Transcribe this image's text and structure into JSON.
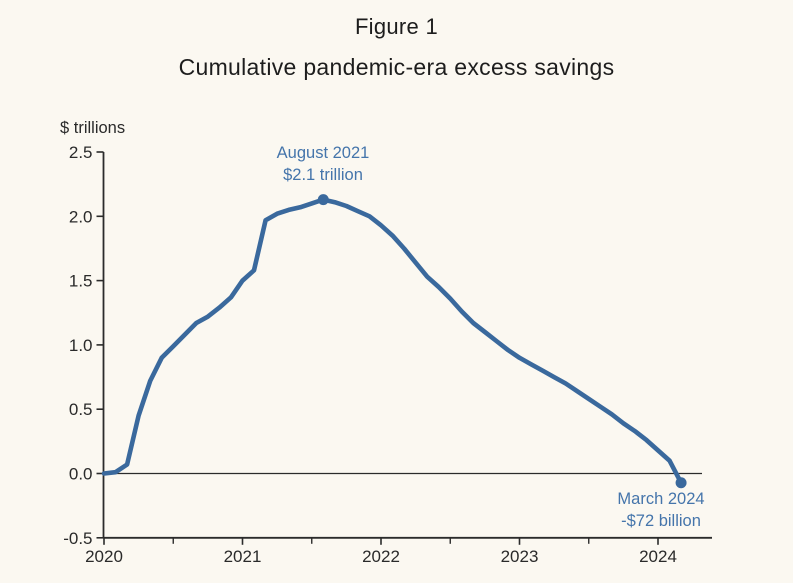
{
  "header": {
    "figure_label": "Figure 1",
    "title": "Cumulative pandemic-era excess savings"
  },
  "chart_data": {
    "type": "line",
    "title": "Figure 1",
    "subtitle": "Cumulative pandemic-era excess savings",
    "ylabel": "$ trillions",
    "xlabel": "",
    "ylim": [
      -0.5,
      2.5
    ],
    "xlim": [
      2020.0,
      2024.42
    ],
    "grid": false,
    "legend": "none",
    "zero_line": true,
    "colors": {
      "line": "#3a699d",
      "axis": "#2b2b2b",
      "annotation": "#4575ab",
      "background": "#fbf8f1"
    },
    "y_ticks": [
      {
        "v": -0.5,
        "label": "-0.5"
      },
      {
        "v": 0.0,
        "label": "0.0"
      },
      {
        "v": 0.5,
        "label": "0.5"
      },
      {
        "v": 1.0,
        "label": "1.0"
      },
      {
        "v": 1.5,
        "label": "1.5"
      },
      {
        "v": 2.0,
        "label": "2.0"
      },
      {
        "v": 2.5,
        "label": "2.5"
      }
    ],
    "x_ticks": [
      {
        "v": 2020,
        "label": "2020"
      },
      {
        "v": 2021,
        "label": "2021"
      },
      {
        "v": 2022,
        "label": "2022"
      },
      {
        "v": 2023,
        "label": "2023"
      },
      {
        "v": 2024,
        "label": "2024"
      }
    ],
    "x_minor_ticks": [
      2020.5,
      2021.5,
      2022.5,
      2023.5
    ],
    "series": [
      {
        "name": "Cumulative pandemic-era excess savings ($ trillions)",
        "points": [
          {
            "date": "2020-01",
            "value": 0.0
          },
          {
            "date": "2020-02",
            "value": 0.01
          },
          {
            "date": "2020-03",
            "value": 0.07
          },
          {
            "date": "2020-04",
            "value": 0.45
          },
          {
            "date": "2020-05",
            "value": 0.72
          },
          {
            "date": "2020-06",
            "value": 0.9
          },
          {
            "date": "2020-07",
            "value": 0.99
          },
          {
            "date": "2020-08",
            "value": 1.08
          },
          {
            "date": "2020-09",
            "value": 1.17
          },
          {
            "date": "2020-10",
            "value": 1.22
          },
          {
            "date": "2020-11",
            "value": 1.29
          },
          {
            "date": "2020-12",
            "value": 1.37
          },
          {
            "date": "2021-01",
            "value": 1.5
          },
          {
            "date": "2021-02",
            "value": 1.58
          },
          {
            "date": "2021-03",
            "value": 1.97
          },
          {
            "date": "2021-04",
            "value": 2.02
          },
          {
            "date": "2021-05",
            "value": 2.05
          },
          {
            "date": "2021-06",
            "value": 2.07
          },
          {
            "date": "2021-07",
            "value": 2.1
          },
          {
            "date": "2021-08",
            "value": 2.13
          },
          {
            "date": "2021-09",
            "value": 2.11
          },
          {
            "date": "2021-10",
            "value": 2.08
          },
          {
            "date": "2021-11",
            "value": 2.04
          },
          {
            "date": "2021-12",
            "value": 2.0
          },
          {
            "date": "2022-01",
            "value": 1.93
          },
          {
            "date": "2022-02",
            "value": 1.85
          },
          {
            "date": "2022-03",
            "value": 1.75
          },
          {
            "date": "2022-04",
            "value": 1.64
          },
          {
            "date": "2022-05",
            "value": 1.53
          },
          {
            "date": "2022-06",
            "value": 1.45
          },
          {
            "date": "2022-07",
            "value": 1.36
          },
          {
            "date": "2022-08",
            "value": 1.26
          },
          {
            "date": "2022-09",
            "value": 1.17
          },
          {
            "date": "2022-10",
            "value": 1.1
          },
          {
            "date": "2022-11",
            "value": 1.03
          },
          {
            "date": "2022-12",
            "value": 0.96
          },
          {
            "date": "2023-01",
            "value": 0.9
          },
          {
            "date": "2023-02",
            "value": 0.85
          },
          {
            "date": "2023-03",
            "value": 0.8
          },
          {
            "date": "2023-04",
            "value": 0.75
          },
          {
            "date": "2023-05",
            "value": 0.7
          },
          {
            "date": "2023-06",
            "value": 0.64
          },
          {
            "date": "2023-07",
            "value": 0.58
          },
          {
            "date": "2023-08",
            "value": 0.52
          },
          {
            "date": "2023-09",
            "value": 0.46
          },
          {
            "date": "2023-10",
            "value": 0.39
          },
          {
            "date": "2023-11",
            "value": 0.33
          },
          {
            "date": "2023-12",
            "value": 0.26
          },
          {
            "date": "2024-01",
            "value": 0.18
          },
          {
            "date": "2024-02",
            "value": 0.1
          },
          {
            "date": "2024-03",
            "value": -0.072
          }
        ]
      }
    ],
    "annotations": [
      {
        "date": "2021-08",
        "value": 2.13,
        "lines": [
          "August 2021",
          "$2.1 trillion"
        ],
        "position": "above"
      },
      {
        "date": "2024-03",
        "value": -0.072,
        "lines": [
          "March 2024",
          "-$72 billion"
        ],
        "position": "below"
      }
    ]
  }
}
